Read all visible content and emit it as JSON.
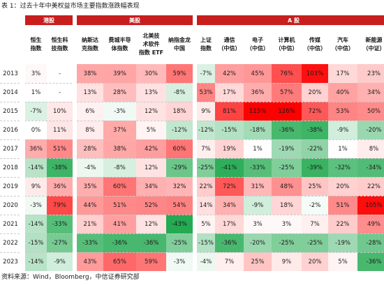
{
  "title": "表 1：过去十年中美权益市场主要指数涨跌幅表现",
  "source": "资料来源：Wind，Bloomberg，中信证券研究部",
  "colors": {
    "header_red": "#c81e1e",
    "pos": "#ff0000",
    "neg": "#1aa64a"
  },
  "chart_data": {
    "type": "heatmap",
    "groups": [
      {
        "label": "港股",
        "columns": [
          0,
          1
        ]
      },
      {
        "label": "美股",
        "columns": [
          2,
          3,
          4,
          5
        ]
      },
      {
        "label": "A 股",
        "columns": [
          6,
          7,
          8,
          9,
          10,
          11,
          12
        ]
      }
    ],
    "columns": [
      [
        "恒生",
        "指数"
      ],
      [
        "恒生科",
        "技指数"
      ],
      [
        "纳斯达",
        "克指数"
      ],
      [
        "费城半导",
        "体指数"
      ],
      [
        "北美技",
        "术软件",
        "指数 ETF"
      ],
      [
        "纳指金龙",
        "中国"
      ],
      [
        "上证",
        "指数"
      ],
      [
        "通信",
        "（中信）"
      ],
      [
        "电子",
        "（中信）"
      ],
      [
        "计算机",
        "（中信）"
      ],
      [
        "传媒",
        "（中信）"
      ],
      [
        "汽车",
        "（中信）"
      ],
      [
        "新能源",
        "（中证）"
      ]
    ],
    "rows": [
      {
        "year": "2013",
        "values": [
          "3%",
          "-",
          "38%",
          "39%",
          "30%",
          "59%",
          "-7%",
          "42%",
          "45%",
          "76%",
          "103%",
          "17%",
          "23%"
        ]
      },
      {
        "year": "2014",
        "values": [
          "1%",
          "-",
          "13%",
          "28%",
          "13%",
          "-8%",
          "53%",
          "17%",
          "36%",
          "57%",
          "20%",
          "40%",
          "34%"
        ]
      },
      {
        "year": "2015",
        "values": [
          "-7%",
          "10%",
          "6%",
          "-3%",
          "12%",
          "18%",
          "9%",
          "81%",
          "115%",
          "126%",
          "72%",
          "53%",
          "50%"
        ]
      },
      {
        "year": "2016",
        "values": [
          "0%",
          "11%",
          "8%",
          "37%",
          "5%",
          "-12%",
          "-12%",
          "-15%",
          "-18%",
          "-36%",
          "-38%",
          "-9%",
          "-20%"
        ]
      },
      {
        "year": "2017",
        "values": [
          "36%",
          "51%",
          "28%",
          "38%",
          "42%",
          "60%",
          "7%",
          "19%",
          "1%",
          "-19%",
          "-22%",
          "1%",
          "8%"
        ]
      },
      {
        "year": "2018",
        "values": [
          "-14%",
          "-38%",
          "-4%",
          "-8%",
          "12%",
          "-29%",
          "-25%",
          "-41%",
          "-33%",
          "-25%",
          "-39%",
          "-32%",
          "-34%"
        ]
      },
      {
        "year": "2019",
        "values": [
          "9%",
          "36%",
          "35%",
          "60%",
          "34%",
          "32%",
          "22%",
          "72%",
          "31%",
          "48%",
          "25%",
          "20%",
          "22%"
        ]
      },
      {
        "year": "2020",
        "values": [
          "-3%",
          "79%",
          "44%",
          "51%",
          "52%",
          "54%",
          "14%",
          "34%",
          "-9%",
          "18%",
          "-2%",
          "51%",
          "105%"
        ]
      },
      {
        "year": "2021",
        "values": [
          "-14%",
          "-33%",
          "21%",
          "41%",
          "12%",
          "-43%",
          "5%",
          "17%",
          "3%",
          "3%",
          "7%",
          "22%",
          "49%"
        ]
      },
      {
        "year": "2022",
        "values": [
          "-15%",
          "-27%",
          "-33%",
          "-36%",
          "-36%",
          "-25%",
          "-15%",
          "-36%",
          "-20%",
          "-25%",
          "-25%",
          "-19%",
          "-28%"
        ]
      },
      {
        "year": "2023",
        "values": [
          "-14%",
          "-9%",
          "43%",
          "65%",
          "59%",
          "-3%",
          "-4%",
          "7%",
          "25%",
          "9%",
          "20%",
          "5%",
          "-36%"
        ]
      }
    ]
  }
}
